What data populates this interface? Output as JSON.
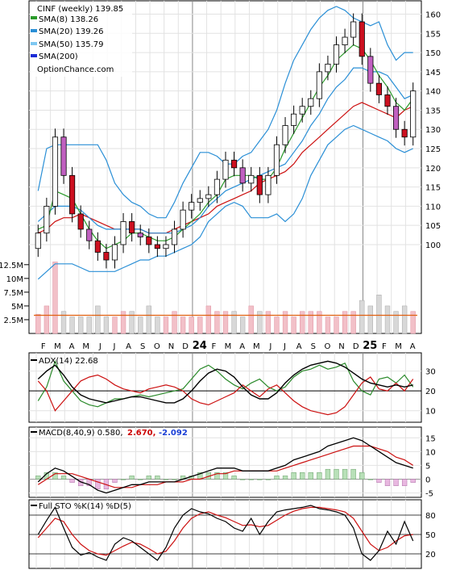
{
  "chart_data": {
    "type": "stock-chart",
    "legend": {
      "title": "CINF (weekly) 139.85",
      "entries": [
        {
          "label": "SMA(8) 138.26",
          "color": "#2a9a2a"
        },
        {
          "label": "SMA(20) 139.26",
          "color": "#2a8fd6"
        },
        {
          "label": "SMA(50) 135.79",
          "color": "#7ec8f2"
        },
        {
          "label": "SMA(200)",
          "color": "#1a2bd6"
        }
      ],
      "source": "OptionChance.com"
    },
    "x_axis": {
      "months": [
        "F",
        "M",
        "A",
        "M",
        "J",
        "J",
        "A",
        "S",
        "O",
        "N",
        "D",
        "24",
        "F",
        "M",
        "A",
        "M",
        "J",
        "J",
        "A",
        "S",
        "O",
        "N",
        "D",
        "25",
        "F",
        "M",
        "A"
      ],
      "year_markers": [
        "24",
        "25"
      ]
    },
    "price_panel": {
      "ylim": [
        96,
        162
      ],
      "ticks": [
        100,
        105,
        110,
        115,
        120,
        125,
        130,
        135,
        140,
        145,
        150,
        155,
        160
      ],
      "close": [
        103,
        110,
        128,
        118,
        108,
        104,
        101,
        98,
        96,
        100,
        106,
        103,
        102,
        100,
        99,
        100,
        104,
        109,
        111,
        112,
        113,
        117,
        122,
        120,
        116,
        118,
        113,
        118,
        126,
        131,
        134,
        136,
        138,
        145,
        147,
        152,
        154,
        158,
        149,
        142,
        139,
        136,
        130,
        128,
        140
      ],
      "sma8": [
        104,
        105,
        114,
        113,
        112,
        108,
        104,
        101,
        99,
        100,
        101,
        103,
        103,
        102,
        101,
        101,
        102,
        104,
        106,
        108,
        111,
        113,
        117,
        118,
        118,
        118,
        117,
        117,
        120,
        125,
        129,
        133,
        137,
        141,
        144,
        148,
        150,
        152,
        151,
        148,
        144,
        141,
        137,
        135,
        138
      ],
      "sma20": [
        106,
        108,
        110,
        110,
        110,
        109,
        107,
        105,
        104,
        104,
        104,
        104,
        104,
        103,
        103,
        103,
        103,
        104,
        105,
        107,
        110,
        112,
        114,
        115,
        116,
        117,
        118,
        119,
        120,
        121,
        124,
        127,
        131,
        134,
        138,
        141,
        143,
        146,
        146,
        145,
        145,
        144,
        141,
        138,
        139
      ],
      "sma50": [
        103,
        104,
        106,
        107,
        107,
        108,
        107,
        106,
        105,
        104,
        104,
        104,
        104,
        103,
        103,
        103,
        104,
        105,
        106,
        107,
        108,
        110,
        111,
        112,
        113,
        114,
        116,
        117,
        118,
        119,
        121,
        124,
        126,
        128,
        130,
        132,
        134,
        136,
        137,
        136,
        135,
        134,
        133,
        135,
        136
      ],
      "bb_upper": [
        114,
        125,
        126,
        126,
        126,
        126,
        126,
        126,
        122,
        116,
        113,
        111,
        110,
        108,
        107,
        107,
        111,
        116,
        120,
        124,
        124,
        123,
        121,
        121,
        123,
        124,
        127,
        130,
        135,
        142,
        148,
        152,
        156,
        159,
        161,
        162,
        161,
        159,
        158,
        157,
        158,
        152,
        148,
        150,
        150
      ],
      "bb_lower": [
        91,
        93,
        95,
        95,
        95,
        94,
        93,
        93,
        93,
        93,
        94,
        95,
        96,
        96,
        97,
        97,
        98,
        99,
        100,
        102,
        106,
        108,
        110,
        111,
        110,
        107,
        107,
        107,
        108,
        106,
        108,
        112,
        118,
        122,
        126,
        128,
        130,
        131,
        130,
        129,
        128,
        127,
        125,
        124,
        125
      ]
    },
    "volume_panel": {
      "ticks": [
        "2.5M",
        "5M",
        "7.5M",
        "10M",
        "12.5M"
      ],
      "values": [
        3.5,
        5,
        13,
        4,
        3,
        3,
        3,
        5,
        3,
        3,
        4,
        4,
        3,
        5,
        3,
        3,
        4,
        3,
        3,
        3,
        5,
        4,
        4,
        4,
        3,
        5,
        4,
        4,
        3,
        4,
        3,
        4,
        4,
        4,
        3,
        3,
        4,
        4,
        6,
        5,
        7,
        5,
        4,
        5,
        4
      ],
      "avg": 3.3
    },
    "adx_panel": {
      "title": "ADX(14) 22.68",
      "ylim": [
        5,
        38
      ],
      "ticks": [
        10,
        20,
        30
      ],
      "adx": [
        26,
        30,
        33,
        28,
        22,
        18,
        16,
        15,
        14,
        15,
        16,
        17,
        17,
        16,
        15,
        14,
        14,
        16,
        20,
        25,
        29,
        31,
        30,
        27,
        22,
        18,
        16,
        16,
        19,
        24,
        28,
        31,
        33,
        34,
        35,
        34,
        32,
        29,
        26,
        24,
        23,
        22,
        23,
        22,
        23
      ],
      "plus_di": [
        15,
        22,
        35,
        25,
        20,
        15,
        13,
        12,
        14,
        16,
        16,
        17,
        18,
        17,
        18,
        19,
        20,
        21,
        26,
        31,
        33,
        30,
        26,
        23,
        21,
        24,
        26,
        22,
        20,
        22,
        27,
        30,
        31,
        33,
        31,
        32,
        34,
        25,
        20,
        18,
        26,
        27,
        24,
        28,
        22
      ],
      "minus_di": [
        25,
        20,
        10,
        15,
        20,
        25,
        27,
        28,
        26,
        23,
        21,
        20,
        19,
        21,
        22,
        23,
        22,
        20,
        16,
        14,
        13,
        15,
        17,
        19,
        23,
        20,
        17,
        21,
        23,
        19,
        15,
        12,
        10,
        9,
        8,
        9,
        12,
        18,
        24,
        27,
        21,
        20,
        24,
        20,
        26
      ]
    },
    "macd_panel": {
      "title": "MACD(8,40,9) 0.580,",
      "values_text": [
        "2.670,",
        "-2.092"
      ],
      "values_colors": [
        "#cc0000",
        "#1a3fd6"
      ],
      "ylim": [
        -6,
        18
      ],
      "ticks": [
        -5,
        0,
        5,
        10,
        15
      ],
      "macd": [
        -1,
        2,
        4,
        3,
        1,
        -1,
        -2,
        -4,
        -5,
        -4,
        -3,
        -2,
        -2,
        -1,
        -1,
        -1,
        -1,
        0,
        1,
        2,
        3,
        4,
        4,
        4,
        3,
        3,
        3,
        3,
        4,
        5,
        7,
        8,
        9,
        10,
        12,
        13,
        14,
        15,
        14,
        12,
        10,
        8,
        6,
        5,
        4
      ],
      "signal": [
        -2,
        0,
        2,
        2,
        2,
        1,
        0,
        -1,
        -2,
        -3,
        -3,
        -3,
        -2,
        -2,
        -2,
        -1,
        -1,
        -1,
        0,
        0,
        1,
        2,
        2,
        3,
        3,
        3,
        3,
        3,
        3,
        4,
        5,
        6,
        7,
        8,
        9,
        10,
        11,
        12,
        12,
        12,
        11,
        10,
        8,
        7,
        5
      ]
    },
    "sto_panel": {
      "title": "Full STO %K(14) %D(5)",
      "ylim": [
        0,
        100
      ],
      "ticks": [
        20,
        50,
        80
      ],
      "k": [
        50,
        72,
        92,
        60,
        30,
        18,
        22,
        15,
        10,
        35,
        45,
        40,
        30,
        20,
        10,
        30,
        60,
        80,
        90,
        85,
        82,
        75,
        70,
        60,
        55,
        75,
        50,
        70,
        85,
        88,
        90,
        92,
        95,
        90,
        88,
        85,
        80,
        60,
        20,
        10,
        25,
        55,
        35,
        70,
        40
      ],
      "d": [
        45,
        60,
        75,
        70,
        50,
        35,
        25,
        20,
        18,
        25,
        32,
        38,
        35,
        28,
        20,
        24,
        40,
        60,
        75,
        82,
        85,
        80,
        76,
        70,
        64,
        65,
        62,
        64,
        72,
        80,
        86,
        90,
        92,
        92,
        90,
        88,
        85,
        75,
        55,
        35,
        25,
        30,
        40,
        48,
        50
      ]
    }
  }
}
